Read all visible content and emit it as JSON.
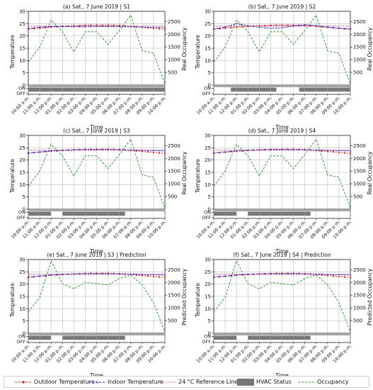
{
  "figure": {
    "shared": {
      "x_ticks": [
        "10:00 a.m.",
        "11:00 a.m.",
        "12:00 p.m.",
        "01:00 p.m.",
        "02:00 p.m.",
        "03:00 p.m.",
        "04:00 p.m.",
        "05:00 p.m.",
        "06:00 p.m.",
        "07:00 p.m.",
        "08:00 p.m.",
        "09:00 p.m.",
        "10:00 p.m."
      ],
      "xlabel": "Time",
      "ylabel_left": "Temperature",
      "y_ticks_left": [
        "0",
        "5",
        "10",
        "15",
        "20",
        "25",
        "30"
      ],
      "y_ticks_right": [
        "500",
        "1000",
        "1500",
        "2000",
        "2500"
      ],
      "status_ticks": [
        "ON",
        "OFF"
      ],
      "colors": {
        "outdoor": "#d62728",
        "indoor": "#1f1fcc",
        "reference": "#c0308a",
        "hvac": "#777777",
        "occupancy": "#2ca02c",
        "grid": "#b0b0b0"
      }
    },
    "legend": {
      "outdoor": "Outdoor Temperature",
      "indoor": "Indoor Temperature",
      "reference": "24 °C Reference Line",
      "hvac": "HVAC Status",
      "occupancy": "Occupancy"
    }
  },
  "chart_data": [
    {
      "type": "line",
      "title": "(a) Sat., 7 June 2019 | S1",
      "ylabel_right": "Real Occupancy",
      "x": [
        0,
        1,
        2,
        3,
        4,
        5,
        6,
        7,
        8,
        9,
        10,
        11,
        12
      ],
      "ylim_left": [
        0,
        30
      ],
      "ylim_right": [
        0,
        2900
      ],
      "reference_line": 24,
      "series": [
        {
          "name": "Outdoor Temperature",
          "axis": "left",
          "values": [
            22.8,
            23.2,
            23.6,
            23.9,
            24.1,
            24.3,
            24.4,
            24.4,
            24.2,
            23.9,
            23.5,
            23.1,
            22.7
          ]
        },
        {
          "name": "Indoor Temperature",
          "axis": "left",
          "values": [
            22.9,
            23.6,
            23.8,
            23.8,
            23.7,
            23.7,
            23.8,
            23.8,
            23.7,
            23.7,
            23.6,
            23.5,
            23.4
          ]
        },
        {
          "name": "Occupancy",
          "axis": "right",
          "values": [
            900,
            1500,
            2550,
            2100,
            1300,
            2100,
            2100,
            1600,
            2150,
            2750,
            1350,
            1250,
            40
          ]
        }
      ],
      "hvac_on": [
        [
          0,
          12
        ]
      ]
    },
    {
      "type": "line",
      "title": "(b) Sat., 7 June 2019 | S2",
      "ylabel_right": "Real Occupancy",
      "x": [
        0,
        1,
        2,
        3,
        4,
        5,
        6,
        7,
        8,
        9,
        10,
        11,
        12
      ],
      "ylim_left": [
        0,
        30
      ],
      "ylim_right": [
        0,
        2900
      ],
      "reference_line": 24,
      "series": [
        {
          "name": "Outdoor Temperature",
          "axis": "left",
          "values": [
            22.8,
            23.2,
            23.6,
            23.9,
            24.1,
            24.3,
            24.4,
            24.4,
            24.2,
            23.9,
            23.5,
            23.1,
            22.7
          ]
        },
        {
          "name": "Indoor Temperature",
          "axis": "left",
          "values": [
            22.8,
            23.6,
            25.0,
            24.2,
            23.5,
            23.1,
            23.3,
            24.0,
            24.6,
            24.2,
            23.6,
            23.1,
            22.8
          ]
        },
        {
          "name": "Occupancy",
          "axis": "right",
          "values": [
            900,
            1500,
            2550,
            2100,
            1300,
            2100,
            2100,
            1600,
            2150,
            2750,
            1350,
            1250,
            40
          ]
        }
      ],
      "hvac_on": [
        [
          1.5,
          5.5
        ],
        [
          7.5,
          12
        ]
      ]
    },
    {
      "type": "line",
      "title": "(c) Sat., 7 June 2019 | S3",
      "ylabel_right": "Real Occupancy",
      "x": [
        0,
        1,
        2,
        3,
        4,
        5,
        6,
        7,
        8,
        9,
        10,
        11,
        12
      ],
      "ylim_left": [
        0,
        30
      ],
      "ylim_right": [
        0,
        2900
      ],
      "reference_line": 24,
      "series": [
        {
          "name": "Outdoor Temperature",
          "axis": "left",
          "values": [
            22.8,
            23.2,
            23.6,
            23.9,
            24.1,
            24.3,
            24.4,
            24.4,
            24.2,
            23.9,
            23.5,
            23.1,
            22.7
          ]
        },
        {
          "name": "Indoor Temperature",
          "axis": "left",
          "values": [
            22.8,
            23.3,
            23.7,
            24.0,
            24.2,
            24.2,
            24.2,
            24.2,
            24.2,
            24.1,
            23.9,
            23.8,
            23.7
          ]
        },
        {
          "name": "Occupancy",
          "axis": "right",
          "values": [
            900,
            1500,
            2550,
            2100,
            1300,
            2100,
            2100,
            1600,
            2150,
            2750,
            1350,
            1250,
            40
          ]
        }
      ],
      "hvac_on": [
        [
          0,
          2
        ],
        [
          3,
          8.5
        ]
      ]
    },
    {
      "type": "line",
      "title": "(d) Sat., 7 June 2019 | S4",
      "ylabel_right": "Real Occupancy",
      "x": [
        0,
        1,
        2,
        3,
        4,
        5,
        6,
        7,
        8,
        9,
        10,
        11,
        12
      ],
      "ylim_left": [
        0,
        30
      ],
      "ylim_right": [
        0,
        2900
      ],
      "reference_line": 24,
      "series": [
        {
          "name": "Outdoor Temperature",
          "axis": "left",
          "values": [
            22.8,
            23.2,
            23.6,
            23.9,
            24.1,
            24.3,
            24.4,
            24.4,
            24.2,
            23.9,
            23.5,
            23.1,
            22.7
          ]
        },
        {
          "name": "Indoor Temperature",
          "axis": "left",
          "values": [
            22.8,
            23.3,
            23.7,
            24.0,
            24.2,
            24.2,
            24.2,
            24.2,
            24.2,
            24.1,
            23.9,
            23.8,
            23.7
          ]
        },
        {
          "name": "Occupancy",
          "axis": "right",
          "values": [
            900,
            1500,
            2550,
            2100,
            1300,
            2100,
            2100,
            1600,
            2150,
            2750,
            1350,
            1250,
            40
          ]
        }
      ],
      "hvac_on": [
        [
          0,
          2
        ],
        [
          3,
          8.5
        ]
      ]
    },
    {
      "type": "line",
      "title": "(e) Sat., 7 June 2019 | S3 | Prediction",
      "ylabel_right": "Predicted Occupancy",
      "x": [
        0,
        1,
        2,
        3,
        4,
        5,
        6,
        7,
        8,
        9,
        10,
        11,
        12
      ],
      "ylim_left": [
        0,
        30
      ],
      "ylim_right": [
        0,
        2900
      ],
      "reference_line": 24,
      "series": [
        {
          "name": "Outdoor Temperature",
          "axis": "left",
          "values": [
            22.8,
            23.2,
            23.6,
            23.9,
            24.1,
            24.3,
            24.4,
            24.4,
            24.2,
            23.9,
            23.5,
            23.1,
            22.7
          ]
        },
        {
          "name": "Indoor Temperature",
          "axis": "left",
          "values": [
            22.8,
            23.3,
            23.7,
            24.0,
            24.2,
            24.2,
            24.2,
            24.2,
            24.2,
            24.1,
            23.9,
            23.8,
            23.7
          ]
        },
        {
          "name": "Occupancy",
          "axis": "right",
          "values": [
            850,
            1400,
            2850,
            1950,
            1750,
            2000,
            1950,
            1900,
            2150,
            2300,
            1900,
            1200,
            40
          ]
        }
      ],
      "hvac_on": [
        [
          0,
          2
        ],
        [
          3,
          8.5
        ]
      ]
    },
    {
      "type": "line",
      "title": "(f) Sat., 7 June 2019 | S4 | Prediction",
      "ylabel_right": "Predicted Occupancy",
      "x": [
        0,
        1,
        2,
        3,
        4,
        5,
        6,
        7,
        8,
        9,
        10,
        11,
        12
      ],
      "ylim_left": [
        0,
        30
      ],
      "ylim_right": [
        0,
        2900
      ],
      "reference_line": 24,
      "series": [
        {
          "name": "Outdoor Temperature",
          "axis": "left",
          "values": [
            22.8,
            23.2,
            23.6,
            23.9,
            24.1,
            24.3,
            24.4,
            24.4,
            24.2,
            23.9,
            23.5,
            23.1,
            22.7
          ]
        },
        {
          "name": "Indoor Temperature",
          "axis": "left",
          "values": [
            22.8,
            23.3,
            23.7,
            24.0,
            24.2,
            24.2,
            24.2,
            24.2,
            24.2,
            24.1,
            23.9,
            23.8,
            23.7
          ]
        },
        {
          "name": "Occupancy",
          "axis": "right",
          "values": [
            850,
            1400,
            2850,
            1950,
            1750,
            2000,
            1950,
            1900,
            2150,
            2300,
            1900,
            1200,
            40
          ]
        }
      ],
      "hvac_on": [
        [
          0,
          2
        ],
        [
          3,
          8.5
        ]
      ]
    }
  ]
}
